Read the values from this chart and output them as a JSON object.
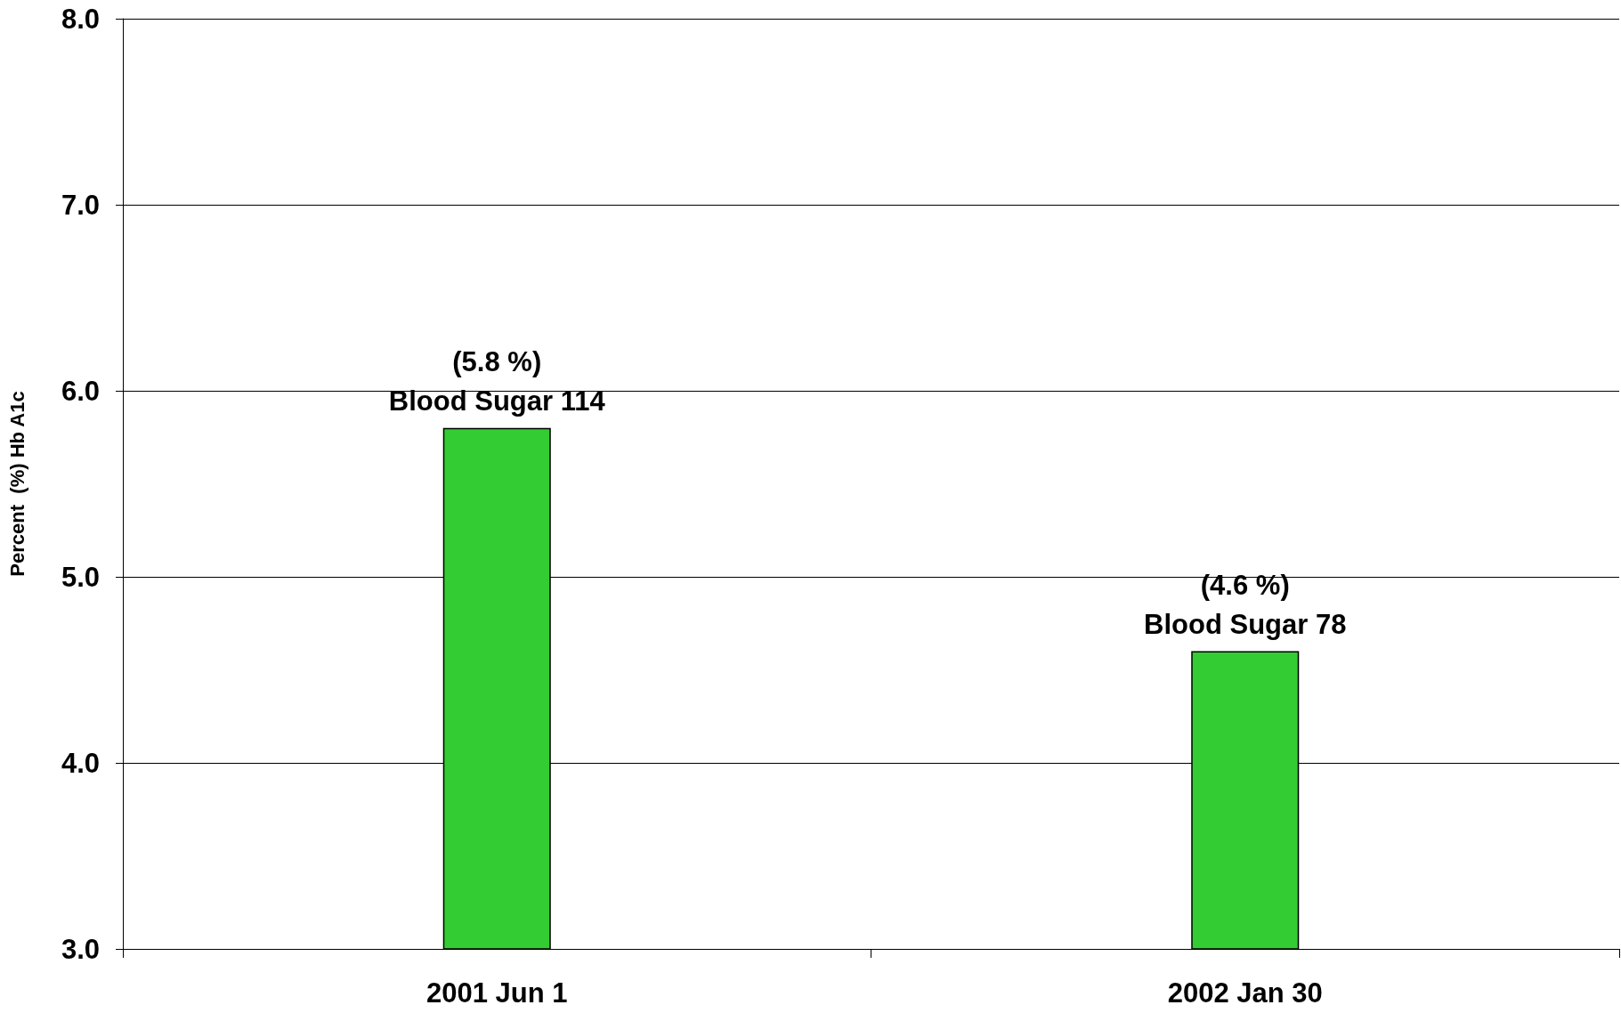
{
  "chart_data": {
    "type": "bar",
    "ylabel": "Percent  (%) Hb A1c",
    "categories": [
      "2001 Jun 1",
      "2002 Jan 30"
    ],
    "values": [
      5.8,
      4.6
    ],
    "color": "#33cc33",
    "value_labels": [
      "(5.8 %)\nBlood Sugar 114",
      "(4.6 %)\nBlood Sugar 78"
    ],
    "ylim": [
      3,
      8
    ],
    "yticks": [
      {
        "value": 3,
        "label": "3.0"
      },
      {
        "value": 4,
        "label": "4.0"
      },
      {
        "value": 5,
        "label": "5.0"
      },
      {
        "value": 6,
        "label": "6.0"
      },
      {
        "value": 7,
        "label": "7.0"
      },
      {
        "value": 8,
        "label": "8.0"
      }
    ],
    "grid": "y"
  }
}
